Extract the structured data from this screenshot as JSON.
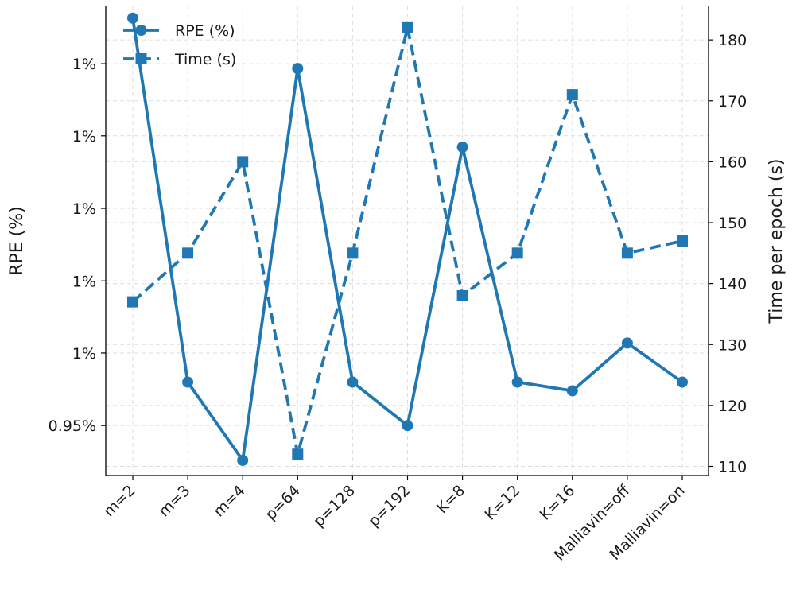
{
  "chart_data": {
    "type": "line",
    "categories": [
      "m=2",
      "m=3",
      "m=4",
      "p=64",
      "p=128",
      "p=192",
      "K=8",
      "K=12",
      "K=16",
      "Malliavin=off",
      "Malliavin=on"
    ],
    "series": [
      {
        "name": "RPE (%)",
        "axis": "left",
        "marker": "circle",
        "linestyle": "solid",
        "color": "#1f77b4",
        "values": [
          1.0438,
          0.96,
          0.942,
          1.0322,
          0.96,
          0.95,
          1.0141,
          0.96,
          0.958,
          0.969,
          0.96
        ]
      },
      {
        "name": "Time (s)",
        "axis": "right",
        "marker": "square",
        "linestyle": "dashed",
        "color": "#1f77b4",
        "values": [
          137,
          145,
          160,
          112,
          145,
          182,
          138,
          145,
          171,
          145,
          147
        ]
      }
    ],
    "ylabel": "RPE (%)",
    "y2label": "Time per epoch (s)",
    "ylim": [
      0.9385,
      1.0465
    ],
    "y2lim": [
      108.5,
      185.5
    ],
    "yticks": [
      0.95,
      0.9667,
      0.9833,
      1.0,
      1.0167,
      1.0333
    ],
    "yticklabels": [
      "0.95%",
      "1%",
      "1%",
      "1%",
      "1%",
      "1%"
    ],
    "y2ticks": [
      110,
      120,
      130,
      140,
      150,
      160,
      170,
      180
    ],
    "y2ticklabels": [
      "110",
      "120",
      "130",
      "140",
      "150",
      "160",
      "170",
      "180"
    ],
    "grid": true,
    "legend": "top-left"
  }
}
